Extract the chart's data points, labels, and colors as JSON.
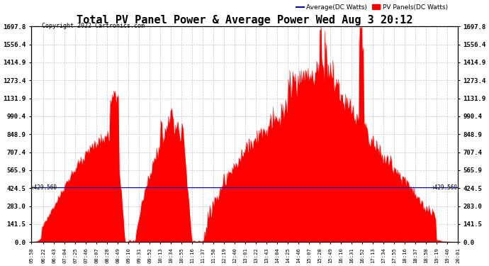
{
  "title": "Total PV Panel Power & Average Power Wed Aug 3 20:12",
  "copyright": "Copyright 2022 Cartronics.com",
  "legend_avg": "Average(DC Watts)",
  "legend_pv": "PV Panels(DC Watts)",
  "avg_value": 429.56,
  "ymax": 1697.8,
  "yticks": [
    0.0,
    141.5,
    283.0,
    424.5,
    565.9,
    707.4,
    848.9,
    990.4,
    1131.9,
    1273.4,
    1414.9,
    1556.4,
    1697.8
  ],
  "fill_color": "#ff0000",
  "avg_line_color": "#0000cc",
  "bg_color": "#ffffff",
  "grid_color": "#c0c0c0",
  "title_fontsize": 11,
  "xtick_labels": [
    "05:58",
    "06:22",
    "06:43",
    "07:04",
    "07:25",
    "07:46",
    "08:07",
    "08:28",
    "08:49",
    "09:10",
    "09:31",
    "09:52",
    "10:13",
    "10:34",
    "10:55",
    "11:16",
    "11:37",
    "11:58",
    "12:19",
    "12:40",
    "13:01",
    "13:22",
    "13:43",
    "14:04",
    "14:25",
    "14:46",
    "15:07",
    "15:28",
    "15:49",
    "16:10",
    "16:31",
    "16:52",
    "17:13",
    "17:34",
    "17:55",
    "18:16",
    "18:37",
    "18:58",
    "19:19",
    "19:40",
    "20:01"
  ]
}
